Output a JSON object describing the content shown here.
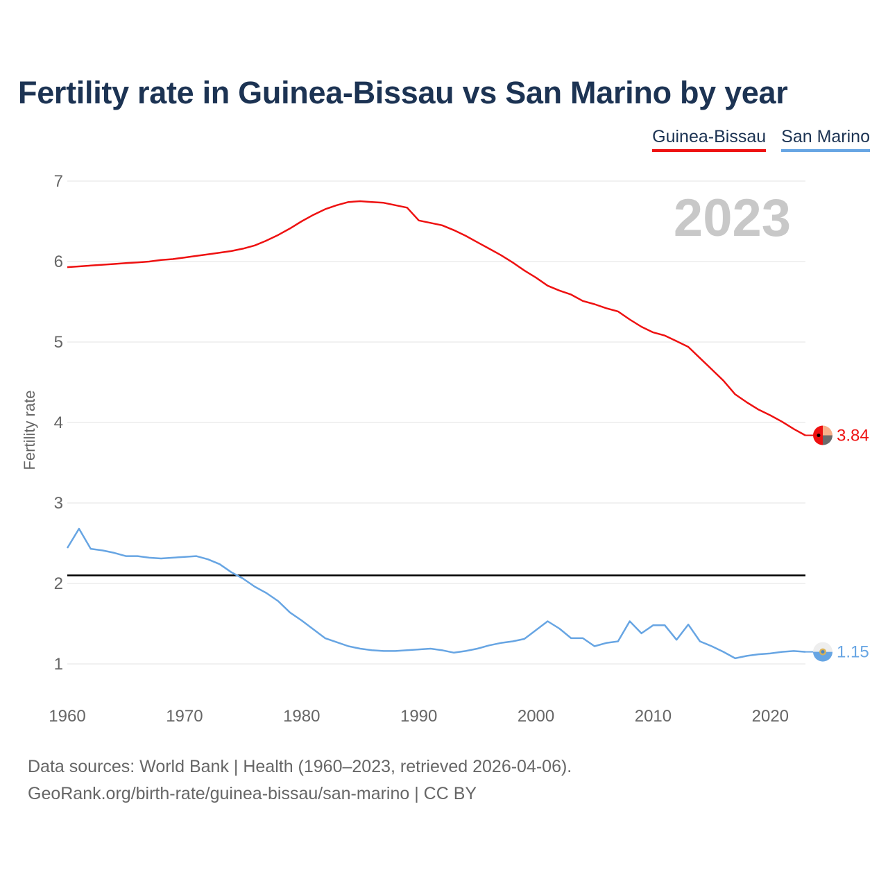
{
  "title": "Fertility rate in Guinea-Bissau vs San Marino by year",
  "legend": [
    {
      "label": "Guinea-Bissau",
      "color": "#ee1111"
    },
    {
      "label": "San Marino",
      "color": "#67a5e3"
    }
  ],
  "footer": {
    "line1": "Data sources: World Bank | Health (1960–2023, retrieved 2026-04-06).",
    "line2": "GeoRank.org/birth-rate/guinea-bissau/san-marino | CC BY"
  },
  "chart_data": {
    "type": "line",
    "title": "Fertility rate in Guinea-Bissau vs San Marino by year",
    "xlabel": "",
    "ylabel": "Fertility rate",
    "year_label": "2023",
    "xlim": [
      1960,
      2023
    ],
    "ylim": [
      0.6,
      7.2
    ],
    "xticks": [
      1960,
      1970,
      1980,
      1990,
      2000,
      2010,
      2020
    ],
    "yticks": [
      1,
      2,
      3,
      4,
      5,
      6,
      7
    ],
    "reference_line": {
      "y": 2.1,
      "color": "#000000"
    },
    "x": [
      1960,
      1961,
      1962,
      1963,
      1964,
      1965,
      1966,
      1967,
      1968,
      1969,
      1970,
      1971,
      1972,
      1973,
      1974,
      1975,
      1976,
      1977,
      1978,
      1979,
      1980,
      1981,
      1982,
      1983,
      1984,
      1985,
      1986,
      1987,
      1988,
      1989,
      1990,
      1991,
      1992,
      1993,
      1994,
      1995,
      1996,
      1997,
      1998,
      1999,
      2000,
      2001,
      2002,
      2003,
      2004,
      2005,
      2006,
      2007,
      2008,
      2009,
      2010,
      2011,
      2012,
      2013,
      2014,
      2015,
      2016,
      2017,
      2018,
      2019,
      2020,
      2021,
      2022,
      2023
    ],
    "series": [
      {
        "name": "Guinea-Bissau",
        "color": "#ee1111",
        "end_label": "3.84",
        "values": [
          5.93,
          5.94,
          5.95,
          5.96,
          5.97,
          5.98,
          5.99,
          6.0,
          6.02,
          6.03,
          6.05,
          6.07,
          6.09,
          6.11,
          6.13,
          6.16,
          6.2,
          6.26,
          6.33,
          6.41,
          6.5,
          6.58,
          6.65,
          6.7,
          6.74,
          6.75,
          6.74,
          6.73,
          6.7,
          6.67,
          6.51,
          6.48,
          6.45,
          6.39,
          6.32,
          6.24,
          6.16,
          6.08,
          5.99,
          5.89,
          5.8,
          5.7,
          5.64,
          5.59,
          5.51,
          5.47,
          5.42,
          5.38,
          5.28,
          5.19,
          5.12,
          5.08,
          5.01,
          4.94,
          4.8,
          4.66,
          4.52,
          4.35,
          4.25,
          4.16,
          4.09,
          4.01,
          3.92,
          3.84
        ]
      },
      {
        "name": "San Marino",
        "color": "#67a5e3",
        "end_label": "1.15",
        "values": [
          2.44,
          2.68,
          2.43,
          2.41,
          2.38,
          2.34,
          2.34,
          2.32,
          2.31,
          2.32,
          2.33,
          2.34,
          2.3,
          2.24,
          2.14,
          2.06,
          1.96,
          1.88,
          1.78,
          1.64,
          1.54,
          1.43,
          1.32,
          1.27,
          1.22,
          1.19,
          1.17,
          1.16,
          1.16,
          1.17,
          1.18,
          1.19,
          1.17,
          1.14,
          1.16,
          1.19,
          1.23,
          1.26,
          1.28,
          1.31,
          1.42,
          1.53,
          1.44,
          1.32,
          1.32,
          1.22,
          1.26,
          1.28,
          1.53,
          1.38,
          1.48,
          1.48,
          1.3,
          1.49,
          1.28,
          1.22,
          1.15,
          1.07,
          1.1,
          1.12,
          1.13,
          1.15,
          1.16,
          1.15
        ]
      }
    ]
  }
}
